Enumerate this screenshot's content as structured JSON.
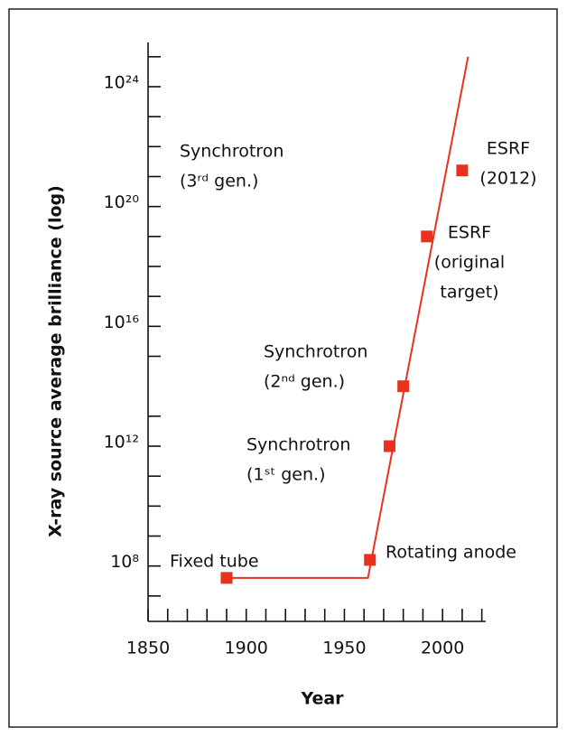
{
  "chart_data": {
    "type": "scatter",
    "xlabel": "Year",
    "ylabel": "X-ray source average brilliance (log)",
    "log_y": true,
    "color": "#e8321e",
    "x": [
      1890,
      1963,
      1973,
      1980,
      1992,
      2010
    ],
    "values": [
      40000000,
      160000000,
      1000000000000,
      100000000000000,
      10000000000000000000,
      1.6e+21
    ],
    "line": {
      "x": [
        1890,
        1962,
        2013
      ],
      "values": [
        40000000,
        40000000,
        1e+25
      ]
    },
    "annotations": [
      {
        "lines": [
          "Fixed tube"
        ]
      },
      {
        "lines": [
          "Rotating anode"
        ]
      },
      {
        "lines": [
          "Synchrotron",
          "(1ˢᵗ gen.)"
        ]
      },
      {
        "lines": [
          "Synchrotron",
          "(2ⁿᵈ gen.)"
        ]
      },
      {
        "lines": [
          "ESRF",
          "(original",
          "target)"
        ]
      },
      {
        "lines": [
          "ESRF",
          "(2012)"
        ]
      },
      {
        "lines": [
          "Synchrotron",
          "(3ʳᵈ gen.)"
        ]
      }
    ],
    "xlim": [
      1850,
      2022
    ],
    "xticks": [
      1850,
      1900,
      1950,
      2000
    ],
    "xminor_ticks": [
      1860,
      1870,
      1880,
      1890,
      1910,
      1920,
      1930,
      1940,
      1960,
      1970,
      1980,
      1990,
      2010,
      2020
    ],
    "ylim": [
      1000000,
      3e+25
    ],
    "yticks": [
      {
        "value": 100000000,
        "label": "10⁸"
      },
      {
        "value": 1000000000000,
        "label": "10¹²"
      },
      {
        "value": 10000000000000000,
        "label": "10¹⁶"
      },
      {
        "value": 1e+20,
        "label": "10²⁰"
      },
      {
        "value": 1e+24,
        "label": "10²⁴"
      }
    ],
    "yminor_ticks": [
      10000000,
      1000000000,
      10000000000,
      100000000000,
      10000000000000,
      1000000000000000,
      100000000000000000,
      1000000000000000000,
      10000000000000000000,
      1e+21,
      1e+22,
      1e+23,
      1e+25
    ]
  }
}
